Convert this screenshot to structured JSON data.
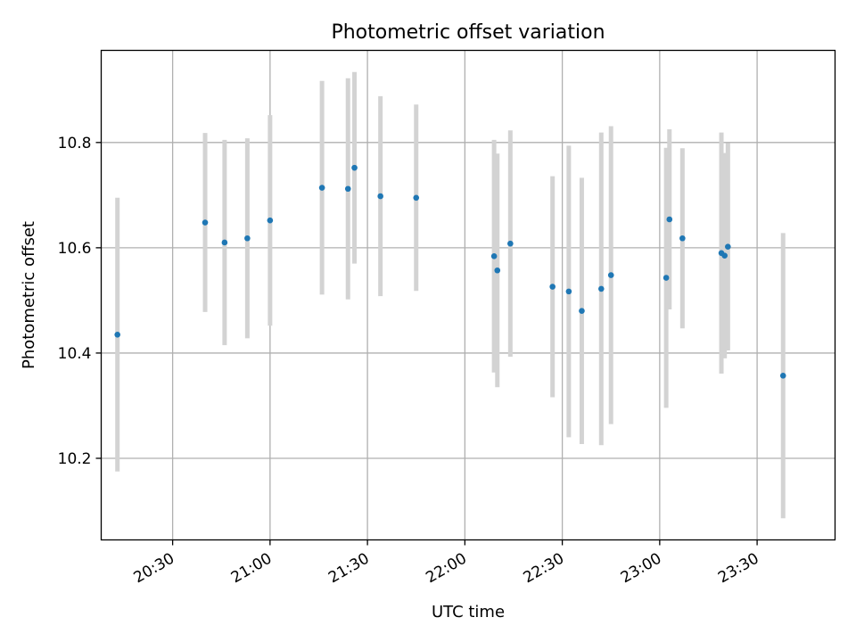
{
  "chart_data": {
    "type": "scatter",
    "title": "Photometric offset variation",
    "xlabel": "UTC time",
    "ylabel": "Photometric offset",
    "x_axis": "time",
    "xlim": [
      "20:08",
      "23:54"
    ],
    "ylim": [
      10.045,
      10.975
    ],
    "x_ticks": [
      "20:30",
      "21:00",
      "21:30",
      "22:00",
      "22:30",
      "23:00",
      "23:30"
    ],
    "y_ticks": [
      "10.2",
      "10.4",
      "10.6",
      "10.8"
    ],
    "grid": true,
    "colors": {
      "marker": "#1f77b4",
      "error_bar": "#d3d3d3"
    },
    "points": [
      {
        "t": "20:13",
        "y": 10.435,
        "err": 0.26
      },
      {
        "t": "20:40",
        "y": 10.648,
        "err": 0.17
      },
      {
        "t": "20:46",
        "y": 10.61,
        "err": 0.195
      },
      {
        "t": "20:53",
        "y": 10.618,
        "err": 0.19
      },
      {
        "t": "21:00",
        "y": 10.652,
        "err": 0.2
      },
      {
        "t": "21:16",
        "y": 10.714,
        "err": 0.203
      },
      {
        "t": "21:24",
        "y": 10.712,
        "err": 0.21
      },
      {
        "t": "21:26",
        "y": 10.752,
        "err": 0.182
      },
      {
        "t": "21:34",
        "y": 10.698,
        "err": 0.19
      },
      {
        "t": "21:45",
        "y": 10.695,
        "err": 0.177
      },
      {
        "t": "22:09",
        "y": 10.584,
        "err": 0.221
      },
      {
        "t": "22:10",
        "y": 10.557,
        "err": 0.222
      },
      {
        "t": "22:14",
        "y": 10.608,
        "err": 0.215
      },
      {
        "t": "22:27",
        "y": 10.526,
        "err": 0.21
      },
      {
        "t": "22:32",
        "y": 10.517,
        "err": 0.277
      },
      {
        "t": "22:36",
        "y": 10.48,
        "err": 0.253
      },
      {
        "t": "22:42",
        "y": 10.522,
        "err": 0.297
      },
      {
        "t": "22:45",
        "y": 10.548,
        "err": 0.283
      },
      {
        "t": "23:02",
        "y": 10.543,
        "err": 0.247
      },
      {
        "t": "23:03",
        "y": 10.654,
        "err": 0.171
      },
      {
        "t": "23:07",
        "y": 10.618,
        "err": 0.171
      },
      {
        "t": "23:19",
        "y": 10.59,
        "err": 0.229
      },
      {
        "t": "23:20",
        "y": 10.585,
        "err": 0.195
      },
      {
        "t": "23:21",
        "y": 10.602,
        "err": 0.197
      },
      {
        "t": "23:38",
        "y": 10.357,
        "err": 0.271
      }
    ]
  }
}
